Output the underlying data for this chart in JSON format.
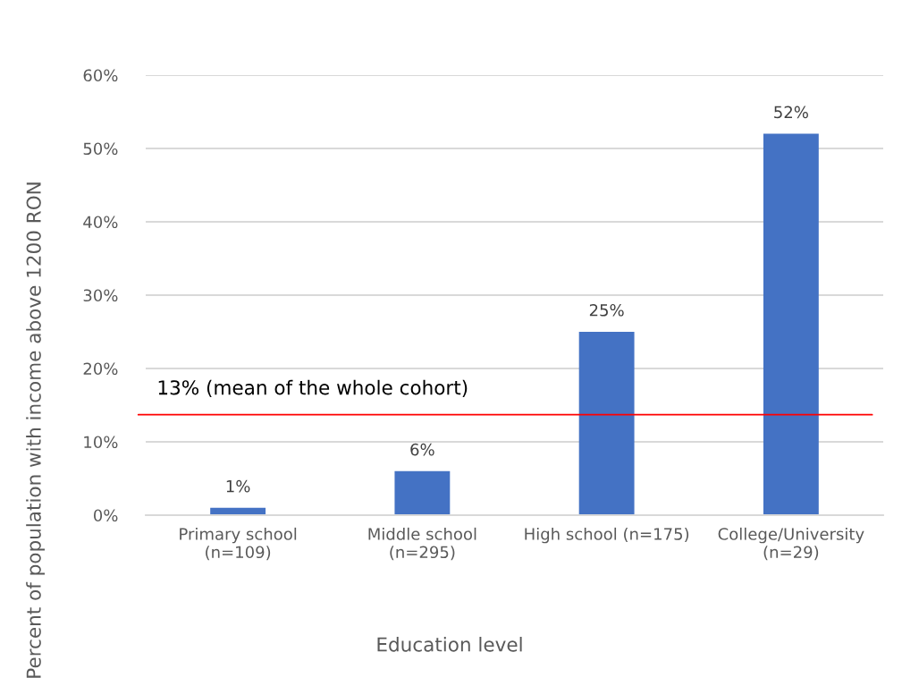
{
  "chart_data": {
    "type": "bar",
    "xlabel": "Education level",
    "ylabel": "Percent of population with income above 1200 RON",
    "categories": [
      "Primary school\n(n=109)",
      "Middle school\n(n=295)",
      "High school (n=175)",
      "College/University\n(n=29)"
    ],
    "values": [
      1,
      6,
      25,
      52
    ],
    "color": "#4472c4",
    "value_labels": [
      "1%",
      "6%",
      "25%",
      "52%"
    ],
    "ylim": [
      0,
      60
    ],
    "yticks": [
      {
        "value": 0,
        "label": "0%"
      },
      {
        "value": 10,
        "label": "10%"
      },
      {
        "value": 20,
        "label": "20%"
      },
      {
        "value": 30,
        "label": "30%"
      },
      {
        "value": 40,
        "label": "40%"
      },
      {
        "value": 50,
        "label": "50%"
      },
      {
        "value": 60,
        "label": "60%"
      }
    ],
    "ref_lines": [
      {
        "axis": "y",
        "value": 13.7,
        "label": "13% (mean of the whole cohort)",
        "color": "#ff0000",
        "line_style": "solid"
      }
    ],
    "grid": "y"
  }
}
